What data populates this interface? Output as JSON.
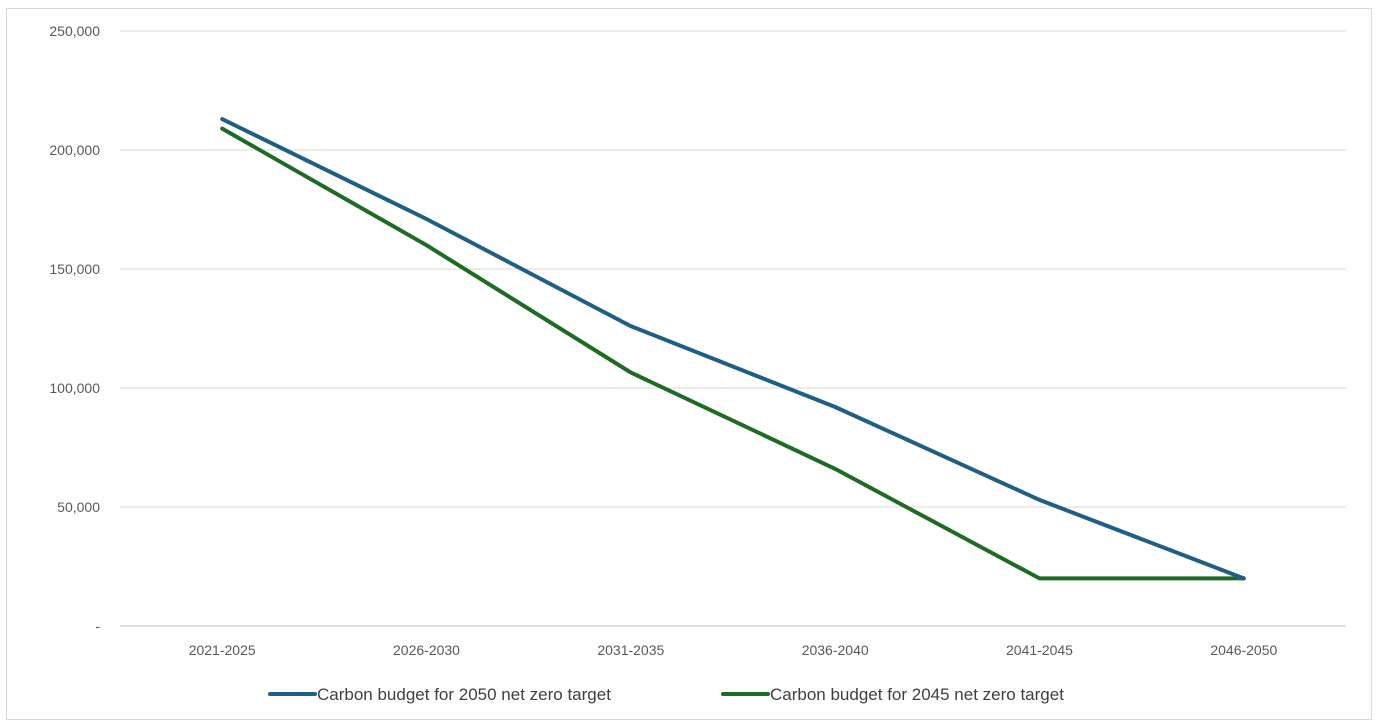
{
  "chart_data": {
    "type": "line",
    "title": "",
    "xlabel": "",
    "ylabel": "",
    "categories": [
      "2021-2025",
      "2026-2030",
      "2031-2035",
      "2036-2040",
      "2041-2045",
      "2046-2050"
    ],
    "ylim": [
      0,
      250000
    ],
    "y_ticks": [
      0,
      50000,
      100000,
      150000,
      200000,
      250000
    ],
    "y_tick_labels": [
      "-",
      "50,000",
      "100,000",
      "150,000",
      "200,000",
      "250,000"
    ],
    "grid": "horizontal",
    "legend_position": "bottom",
    "series": [
      {
        "name": "Carbon budget for 2050 net zero target",
        "color": "#1f5f86",
        "values": [
          213000,
          171000,
          126000,
          92000,
          53000,
          20000
        ]
      },
      {
        "name": "Carbon budget for 2045 net zero target",
        "color": "#1e6b23",
        "values": [
          209000,
          160000,
          106500,
          66000,
          20000,
          20000
        ]
      }
    ]
  }
}
